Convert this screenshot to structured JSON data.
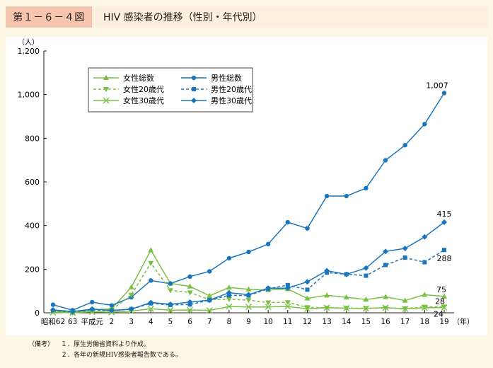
{
  "header": {
    "figure_label": "第１－６－４図",
    "title": "HIV 感染者の推移（性別・年代別）"
  },
  "notes": {
    "prefix": "（備考）",
    "items": [
      "１．厚生労働省資料より作成。",
      "２．各年の新規HIV感染者報告数である。"
    ]
  },
  "chart_data": {
    "type": "line",
    "title": "",
    "ylabel": "（人）",
    "xlabel": "（年）",
    "ylim": [
      0,
      1200
    ],
    "yticks": [
      0,
      200,
      400,
      600,
      800,
      1000,
      1200
    ],
    "ytick_labels": [
      "0",
      "200",
      "400",
      "600",
      "800",
      "1,000",
      "1,200"
    ],
    "categories": [
      "昭和62",
      "63",
      "平成元",
      "2",
      "3",
      "4",
      "5",
      "6",
      "7",
      "8",
      "9",
      "10",
      "11",
      "12",
      "13",
      "14",
      "15",
      "16",
      "17",
      "18",
      "19"
    ],
    "legend_position": "top-left",
    "colors": {
      "female": "#7ac143",
      "male": "#1b75bc"
    },
    "series": [
      {
        "name": "女性総数",
        "group": "female",
        "dash": "solid",
        "marker": "triangle-up",
        "values": [
          9,
          0,
          14,
          18,
          117,
          287,
          135,
          121,
          78,
          116,
          108,
          104,
          109,
          66,
          80,
          71,
          61,
          73,
          56,
          83,
          75
        ]
      },
      {
        "name": "男性総数",
        "group": "male",
        "dash": "solid",
        "marker": "circle",
        "values": [
          37,
          12,
          49,
          34,
          71,
          148,
          134,
          166,
          190,
          250,
          279,
          315,
          415,
          387,
          535,
          535,
          571,
          699,
          768,
          865,
          1007
        ]
      },
      {
        "name": "女性20歳代",
        "group": "female",
        "dash": "dashed",
        "marker": "triangle-down",
        "values": [
          6,
          0,
          12,
          14,
          82,
          228,
          103,
          93,
          60,
          62,
          58,
          47,
          48,
          25,
          23,
          22,
          21,
          22,
          20,
          27,
          28
        ]
      },
      {
        "name": "男性20歳代",
        "group": "male",
        "dash": "dashed",
        "marker": "square",
        "values": [
          10,
          4,
          14,
          9,
          17,
          43,
          36,
          38,
          58,
          80,
          79,
          110,
          127,
          106,
          184,
          177,
          170,
          219,
          253,
          232,
          288
        ]
      },
      {
        "name": "女性30歳代",
        "group": "female",
        "dash": "solid",
        "marker": "x",
        "values": [
          2,
          0,
          5,
          3,
          8,
          18,
          12,
          13,
          11,
          29,
          27,
          27,
          29,
          18,
          23,
          21,
          20,
          24,
          18,
          23,
          24
        ]
      },
      {
        "name": "男性30歳代",
        "group": "male",
        "dash": "solid",
        "marker": "diamond",
        "values": [
          13,
          6,
          17,
          11,
          17,
          47,
          39,
          49,
          58,
          92,
          83,
          113,
          113,
          142,
          193,
          176,
          205,
          281,
          295,
          348,
          415
        ]
      }
    ],
    "annotations": [
      {
        "text": "1,007",
        "series": "男性総数"
      },
      {
        "text": "415",
        "series": "男性30歳代"
      },
      {
        "text": "288",
        "series": "男性20歳代"
      },
      {
        "text": "75",
        "series": "女性総数"
      },
      {
        "text": "28",
        "series": "女性20歳代"
      },
      {
        "text": "24",
        "series": "女性30歳代"
      }
    ]
  }
}
